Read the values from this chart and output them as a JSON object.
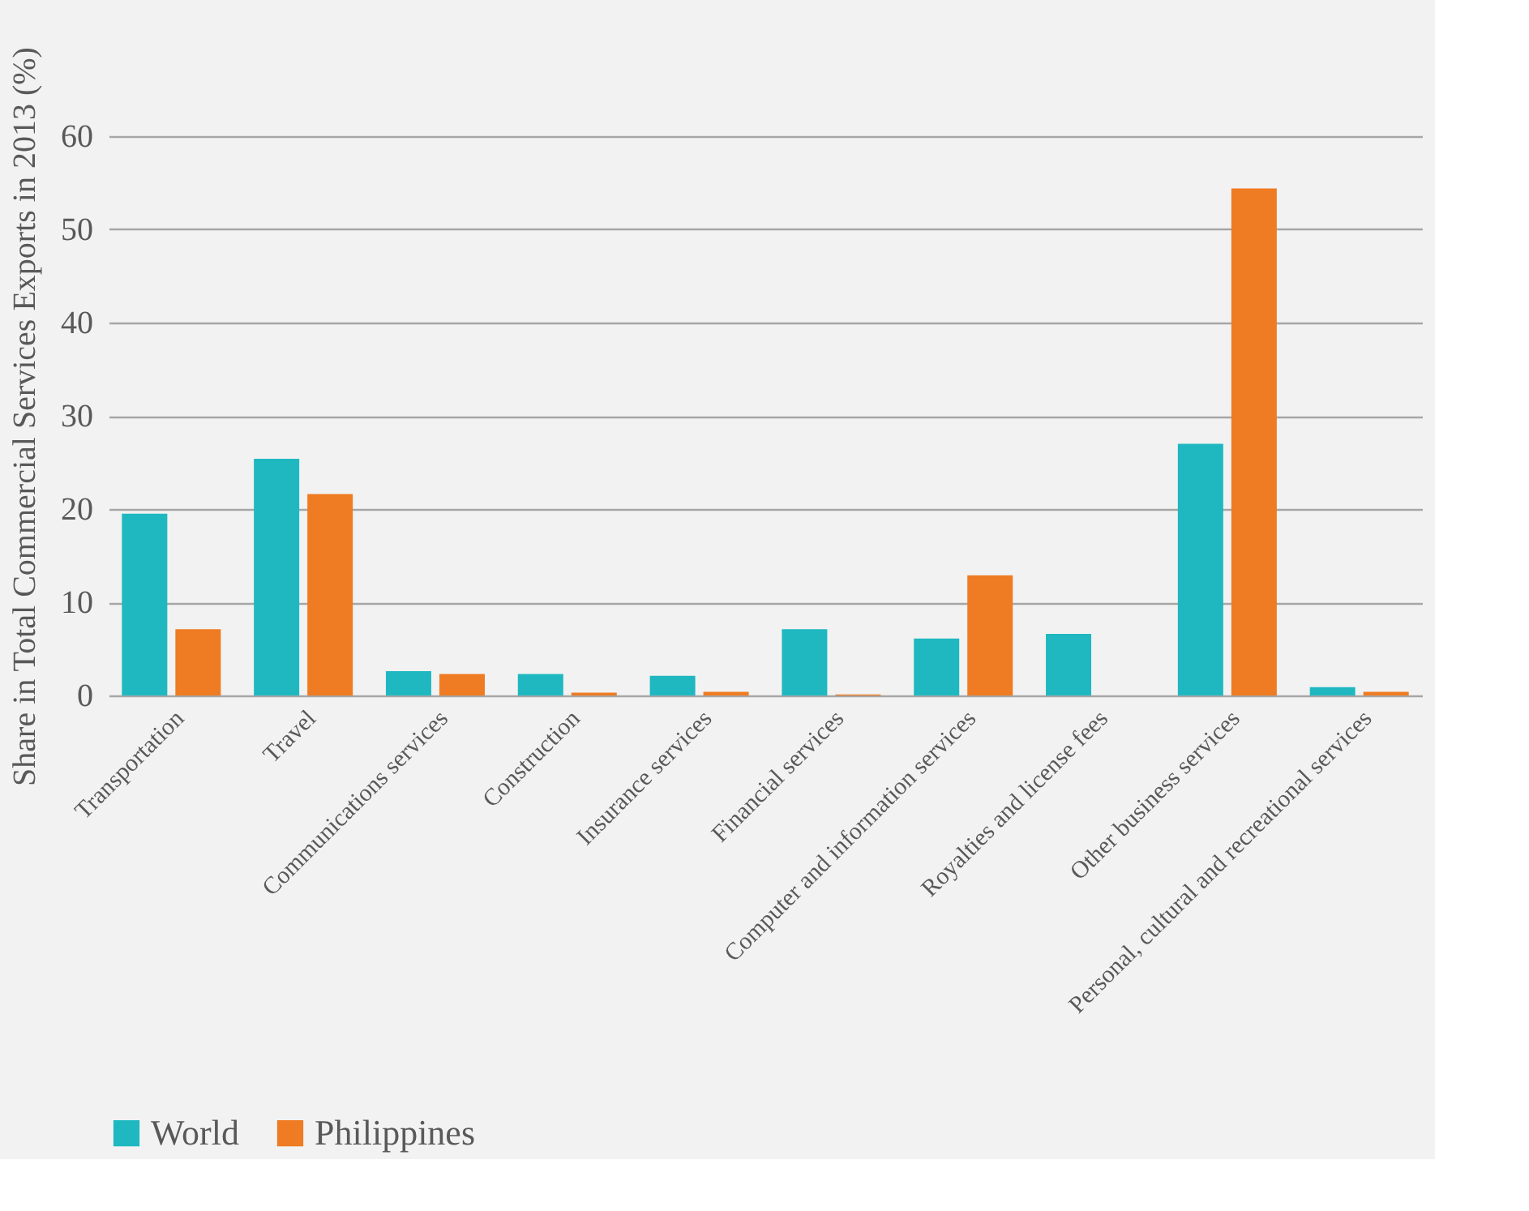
{
  "chart_data": {
    "type": "bar",
    "ylabel": "Share in Total Commercial Services Exports in 2013 (%)",
    "categories": [
      "Transportation",
      "Travel",
      "Communications services",
      "Construction",
      "Insurance services",
      "Financial services",
      "Computer and information services",
      "Royalties and license fees",
      "Other business services",
      "Personal, cultural and recreational services"
    ],
    "series": [
      {
        "name": "World",
        "color": "#1fb8c1",
        "values": [
          19.5,
          25.4,
          2.6,
          2.3,
          2.1,
          7.1,
          6.1,
          6.6,
          27.0,
          0.9
        ]
      },
      {
        "name": "Philippines",
        "color": "#ef7b22",
        "values": [
          7.1,
          21.6,
          2.3,
          0.3,
          0.4,
          0.1,
          12.9,
          0,
          54.4,
          0.4
        ]
      }
    ],
    "ylim": [
      0,
      60
    ],
    "yticks": [
      0,
      10,
      20,
      30,
      40,
      50,
      60
    ],
    "grid": "y",
    "legend": "bottom"
  }
}
